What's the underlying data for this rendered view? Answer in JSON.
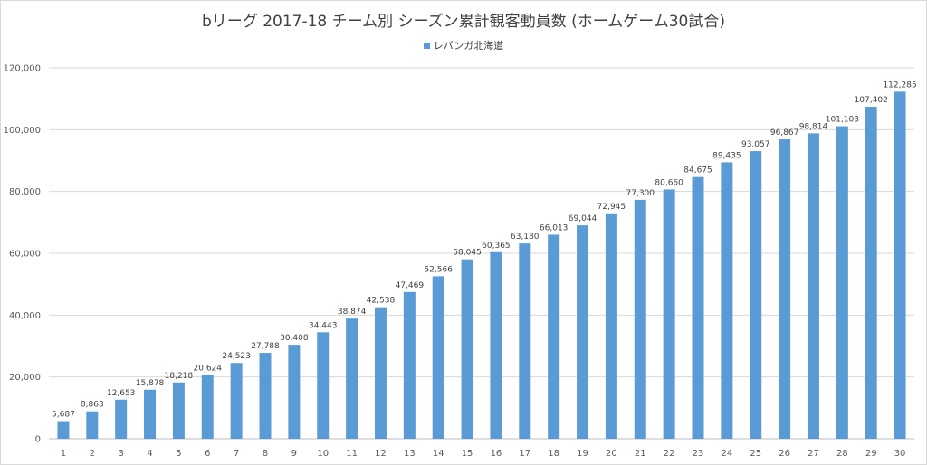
{
  "chart_data": {
    "type": "bar",
    "title": "bリーグ 2017-18 チーム別 シーズン累計観客動員数 (ホームゲーム30試合)",
    "xlabel": "",
    "ylabel": "",
    "ylim": [
      0,
      120000
    ],
    "yticks": [
      0,
      20000,
      40000,
      60000,
      80000,
      100000,
      120000
    ],
    "grid": true,
    "legend_position": "top",
    "categories": [
      "1",
      "2",
      "3",
      "4",
      "5",
      "6",
      "7",
      "8",
      "9",
      "10",
      "11",
      "12",
      "13",
      "14",
      "15",
      "16",
      "17",
      "18",
      "19",
      "20",
      "21",
      "22",
      "23",
      "24",
      "25",
      "26",
      "27",
      "28",
      "29",
      "30"
    ],
    "series": [
      {
        "name": "レバンガ北海道",
        "color": "#5b9bd5",
        "values": [
          5687,
          8863,
          12653,
          15878,
          18218,
          20624,
          24523,
          27788,
          30408,
          34443,
          38874,
          42538,
          47469,
          52566,
          58045,
          60365,
          63180,
          66013,
          69044,
          72945,
          77300,
          80660,
          84675,
          89435,
          93057,
          96867,
          98814,
          101103,
          107402,
          112285
        ]
      }
    ]
  }
}
